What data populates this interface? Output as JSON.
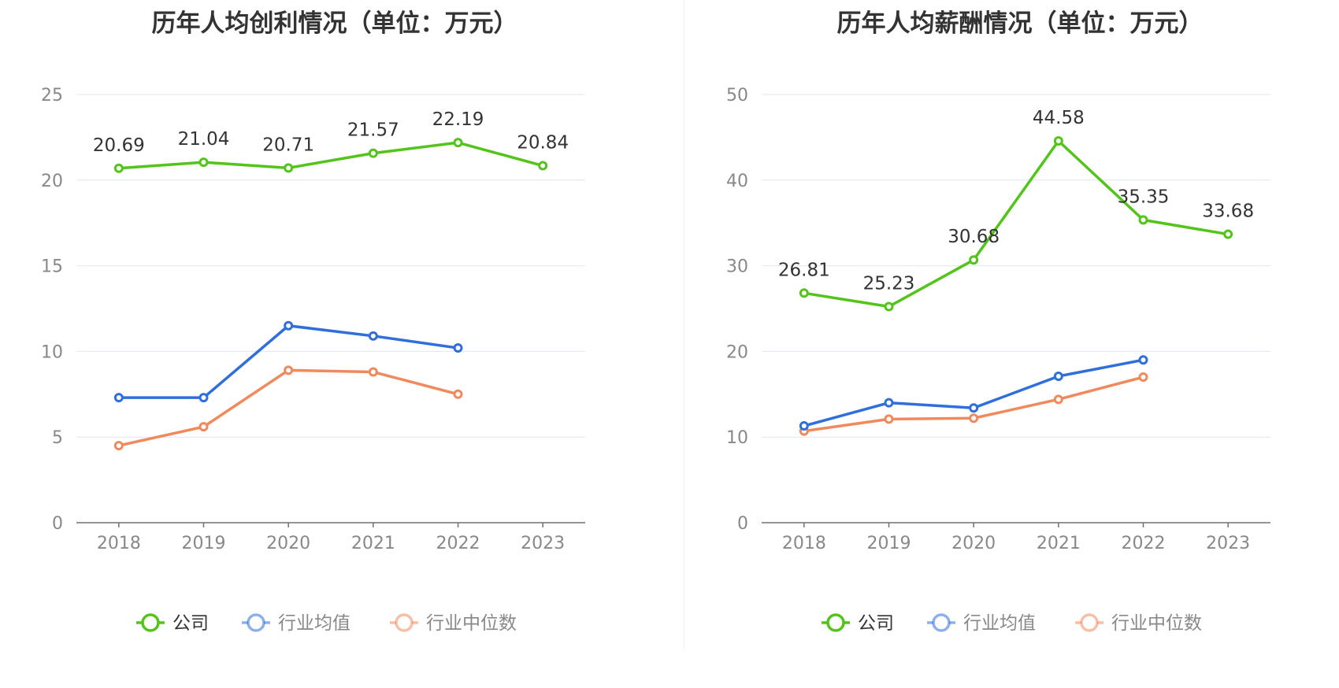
{
  "colors": {
    "company": "#52c41a",
    "avg": "#2f6fdc",
    "median": "#f08a5d",
    "legend_inactive_text": "#888888",
    "legend_active_text": "#333333"
  },
  "legend": {
    "company": "公司",
    "avg": "行业均值",
    "median": "行业中位数"
  },
  "chart_data": [
    {
      "type": "line",
      "title": "历年人均创利情况（单位：万元）",
      "x": [
        "2018",
        "2019",
        "2020",
        "2021",
        "2022",
        "2023"
      ],
      "ylim": [
        0,
        25
      ],
      "yticks": [
        "0",
        "5",
        "10",
        "15",
        "20",
        "25"
      ],
      "grid": true,
      "legend_position": "bottom",
      "series": [
        {
          "name": "公司",
          "values": [
            20.69,
            21.04,
            20.71,
            21.57,
            22.19,
            20.84
          ],
          "labels": [
            "20.69",
            "21.04",
            "20.71",
            "21.57",
            "22.19",
            "20.84"
          ]
        },
        {
          "name": "行业均值",
          "values": [
            7.3,
            7.3,
            11.5,
            10.9,
            10.2,
            null
          ]
        },
        {
          "name": "行业中位数",
          "values": [
            4.5,
            5.6,
            8.9,
            8.8,
            7.5,
            null
          ]
        }
      ]
    },
    {
      "type": "line",
      "title": "历年人均薪酬情况（单位：万元）",
      "x": [
        "2018",
        "2019",
        "2020",
        "2021",
        "2022",
        "2023"
      ],
      "ylim": [
        0,
        50
      ],
      "yticks": [
        "0",
        "10",
        "20",
        "30",
        "40",
        "50"
      ],
      "grid": true,
      "legend_position": "bottom",
      "series": [
        {
          "name": "公司",
          "values": [
            26.81,
            25.23,
            30.68,
            44.58,
            35.35,
            33.68
          ],
          "labels": [
            "26.81",
            "25.23",
            "30.68",
            "44.58",
            "35.35",
            "33.68"
          ]
        },
        {
          "name": "行业均值",
          "values": [
            11.3,
            14.0,
            13.4,
            17.1,
            19.0,
            null
          ]
        },
        {
          "name": "行业中位数",
          "values": [
            10.7,
            12.1,
            12.2,
            14.4,
            17.0,
            null
          ]
        }
      ]
    }
  ]
}
